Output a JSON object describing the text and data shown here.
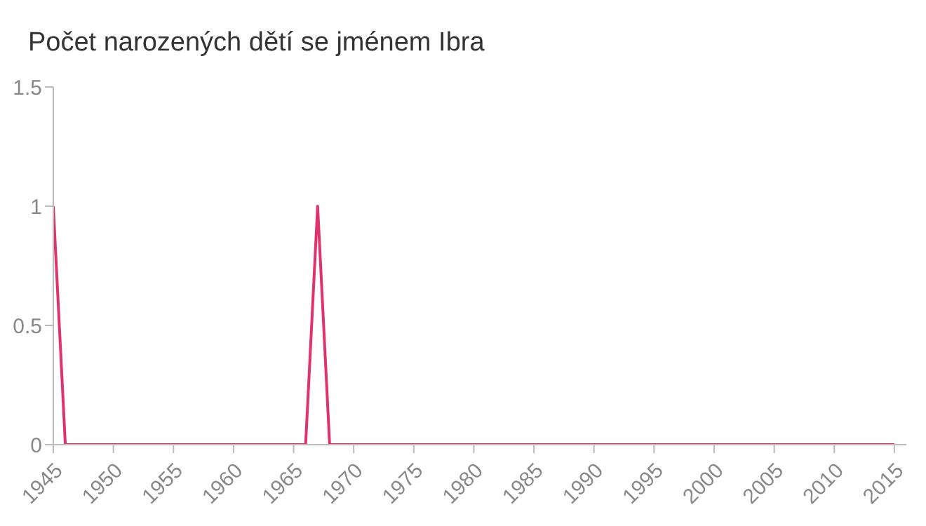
{
  "chart_data": {
    "type": "line",
    "title": "Počet narozených dětí se jménem Ibra",
    "x": [
      1945,
      1946,
      1947,
      1948,
      1949,
      1950,
      1951,
      1952,
      1953,
      1954,
      1955,
      1956,
      1957,
      1958,
      1959,
      1960,
      1961,
      1962,
      1963,
      1964,
      1965,
      1966,
      1967,
      1968,
      1969,
      1970,
      1971,
      1972,
      1973,
      1974,
      1975,
      1976,
      1977,
      1978,
      1979,
      1980,
      1981,
      1982,
      1983,
      1984,
      1985,
      1986,
      1987,
      1988,
      1989,
      1990,
      1991,
      1992,
      1993,
      1994,
      1995,
      1996,
      1997,
      1998,
      1999,
      2000,
      2001,
      2002,
      2003,
      2004,
      2005,
      2006,
      2007,
      2008,
      2009,
      2010,
      2011,
      2012,
      2013,
      2014,
      2015
    ],
    "series": [
      {
        "color": "#e0336b",
        "values": [
          1,
          0,
          0,
          0,
          0,
          0,
          0,
          0,
          0,
          0,
          0,
          0,
          0,
          0,
          0,
          0,
          0,
          0,
          0,
          0,
          0,
          0,
          1,
          0,
          0,
          0,
          0,
          0,
          0,
          0,
          0,
          0,
          0,
          0,
          0,
          0,
          0,
          0,
          0,
          0,
          0,
          0,
          0,
          0,
          0,
          0,
          0,
          0,
          0,
          0,
          0,
          0,
          0,
          0,
          0,
          0,
          0,
          0,
          0,
          0,
          0,
          0,
          0,
          0,
          0,
          0,
          0,
          0,
          0,
          0,
          0
        ]
      }
    ],
    "xlim": [
      1945,
      2016
    ],
    "xticks": [
      1945,
      1950,
      1955,
      1960,
      1965,
      1970,
      1975,
      1980,
      1985,
      1990,
      1995,
      2000,
      2005,
      2010,
      2015
    ],
    "ylim": [
      0,
      1.5
    ],
    "yticks": [
      0,
      0.5,
      1,
      1.5
    ],
    "grid": false,
    "legend": false,
    "marker": "none",
    "line_style": "solid"
  }
}
